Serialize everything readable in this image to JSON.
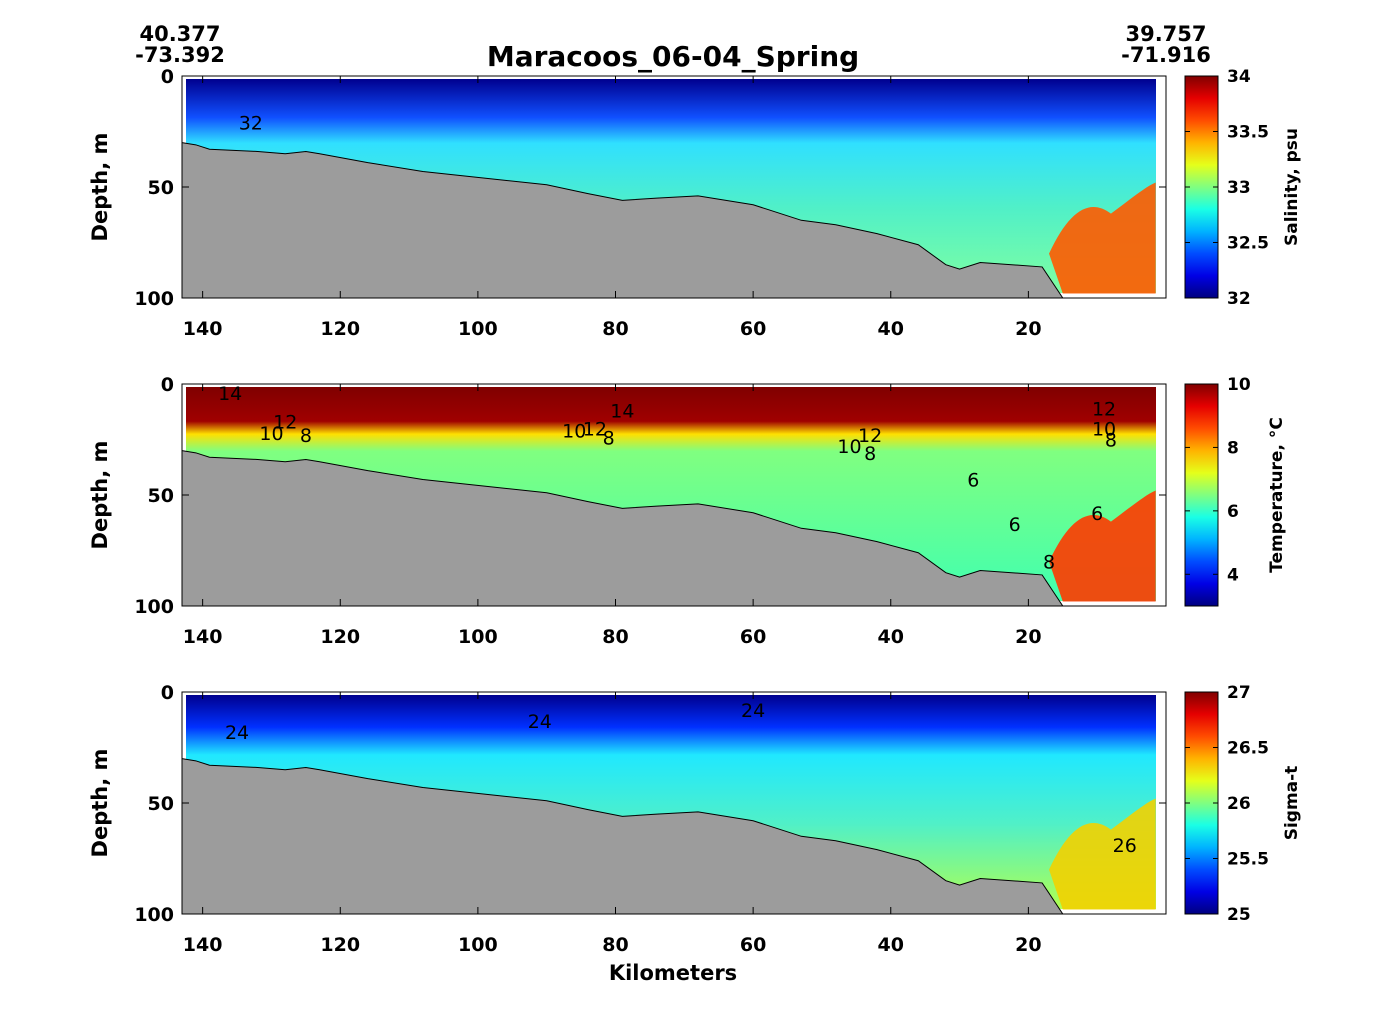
{
  "figure": {
    "title": "Maracoos_06-04_Spring",
    "start_point": {
      "lat": "40.377",
      "lon": "-73.392"
    },
    "end_point": {
      "lat": "39.757",
      "lon": "-71.916"
    },
    "xlabel": "Kilometers"
  },
  "chart_data": [
    {
      "type": "heatmap",
      "name": "salinity",
      "ylabel": "Depth, m",
      "colorbar_label": "Salinity, psu",
      "colormap": "jet",
      "x_ticks": [
        140,
        120,
        100,
        80,
        60,
        40,
        20
      ],
      "y_ticks": [
        0,
        50,
        100
      ],
      "xlim": [
        143,
        0
      ],
      "ylim": [
        0,
        100
      ],
      "clim": [
        32,
        34
      ],
      "colorbar_ticks": [
        "32",
        "32.5",
        "33",
        "33.5",
        "34"
      ],
      "contour_labels": [
        {
          "text": "32",
          "x": 133,
          "y": 21
        }
      ]
    },
    {
      "type": "heatmap",
      "name": "temperature",
      "ylabel": "Depth, m",
      "colorbar_label": "Temperature, °C",
      "colormap": "jet",
      "x_ticks": [
        140,
        120,
        100,
        80,
        60,
        40,
        20
      ],
      "y_ticks": [
        0,
        50,
        100
      ],
      "xlim": [
        143,
        0
      ],
      "ylim": [
        0,
        100
      ],
      "clim": [
        3,
        10
      ],
      "colorbar_ticks": [
        "4",
        "6",
        "8",
        "10"
      ],
      "contour_labels": [
        {
          "text": "14",
          "x": 136,
          "y": 4
        },
        {
          "text": "12",
          "x": 128,
          "y": 17
        },
        {
          "text": "10",
          "x": 130,
          "y": 22
        },
        {
          "text": "8",
          "x": 125,
          "y": 23
        },
        {
          "text": "14",
          "x": 79,
          "y": 12
        },
        {
          "text": "12",
          "x": 83,
          "y": 20
        },
        {
          "text": "10",
          "x": 86,
          "y": 21
        },
        {
          "text": "8",
          "x": 81,
          "y": 24
        },
        {
          "text": "12",
          "x": 43,
          "y": 23
        },
        {
          "text": "10",
          "x": 46,
          "y": 28
        },
        {
          "text": "8",
          "x": 43,
          "y": 31
        },
        {
          "text": "6",
          "x": 28,
          "y": 43
        },
        {
          "text": "6",
          "x": 22,
          "y": 63
        },
        {
          "text": "6",
          "x": 10,
          "y": 58
        },
        {
          "text": "8",
          "x": 17,
          "y": 80
        },
        {
          "text": "12",
          "x": 9,
          "y": 11
        },
        {
          "text": "10",
          "x": 9,
          "y": 20
        },
        {
          "text": "8",
          "x": 8,
          "y": 25
        }
      ]
    },
    {
      "type": "heatmap",
      "name": "sigma_t",
      "ylabel": "Depth, m",
      "colorbar_label": "Sigma-t",
      "colormap": "jet",
      "x_ticks": [
        140,
        120,
        100,
        80,
        60,
        40,
        20
      ],
      "y_ticks": [
        0,
        50,
        100
      ],
      "xlim": [
        143,
        0
      ],
      "ylim": [
        0,
        100
      ],
      "clim": [
        25,
        27
      ],
      "colorbar_ticks": [
        "25",
        "25.5",
        "26",
        "26.5",
        "27"
      ],
      "contour_labels": [
        {
          "text": "24",
          "x": 135,
          "y": 18
        },
        {
          "text": "24",
          "x": 91,
          "y": 13
        },
        {
          "text": "24",
          "x": 60,
          "y": 8
        },
        {
          "text": "26",
          "x": 6,
          "y": 69
        }
      ]
    }
  ]
}
